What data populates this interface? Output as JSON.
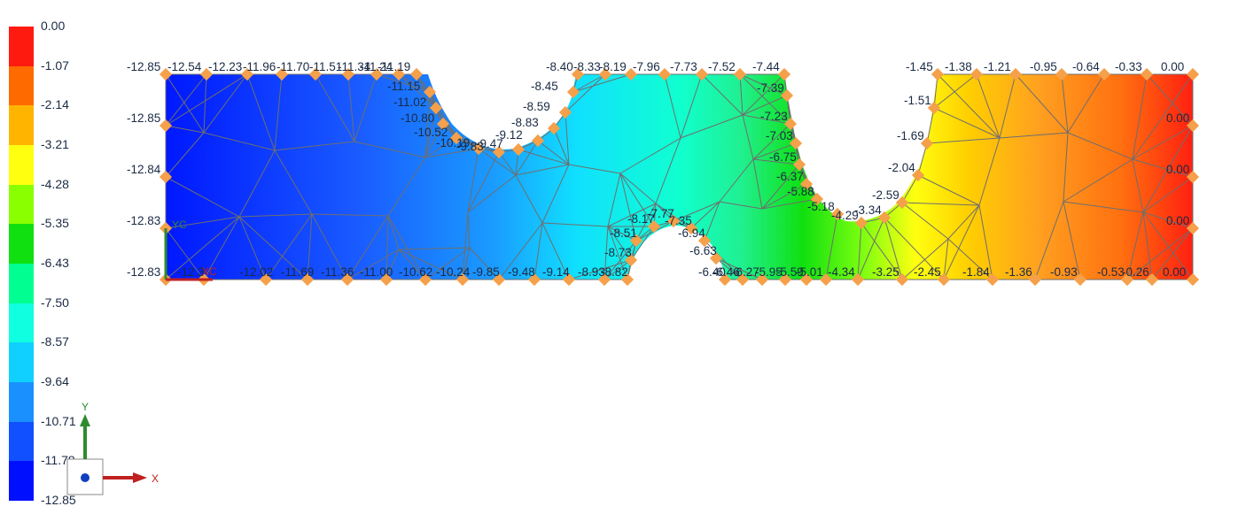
{
  "legend": {
    "colors": [
      "#ff1a10",
      "#ff6a00",
      "#ffb400",
      "#ffff10",
      "#8aff00",
      "#10e010",
      "#00ff90",
      "#10ffe0",
      "#10d0ff",
      "#1a90ff",
      "#1050ff",
      "#0010ff"
    ],
    "labels": [
      "0.00",
      "-1.07",
      "-2.14",
      "-3.21",
      "-4.28",
      "-5.35",
      "-6.43",
      "-7.50",
      "-8.57",
      "-9.64",
      "-10.71",
      "-11.78",
      "-12.85"
    ]
  },
  "view": {
    "x_axis_label": "X",
    "y_axis_label": "Y",
    "xc_label": "XC",
    "yc_label": "YC"
  },
  "node_labels": {
    "left_top": [
      "-12.85",
      "-12.54",
      "-12.23",
      "-11.96",
      "-11.70",
      "-11.51",
      "-11.34",
      "-11.24",
      "-11.19"
    ],
    "left_side": [
      "-12.85",
      "-12.84",
      "-12.83",
      "-12.83"
    ],
    "left_bottom": [
      "-12.3",
      "-12.02",
      "-11.69",
      "-11.36",
      "-11.00",
      "-10.62",
      "-10.24",
      "-9.85",
      "-9.48",
      "-9.14",
      "-8.93",
      "-8.82"
    ],
    "notch1": [
      "-11.15",
      "-11.02",
      "-10.80",
      "-10.52",
      "-10.19",
      "-9.83",
      "-9.47",
      "-9.12",
      "-8.83",
      "-8.59",
      "-8.45"
    ],
    "mid_top": [
      "-8.40",
      "-8.33",
      "-8.19",
      "-7.96",
      "-7.73",
      "-7.52",
      "-7.44"
    ],
    "notch_bottom": [
      "-8.73",
      "-8.51",
      "-8.17",
      "-7.77",
      "-7.35",
      "-6.94",
      "-6.63",
      "-6.40"
    ],
    "mid_bottom": [
      "-6.46",
      "-6.27",
      "-5.95",
      "-5.59",
      "-5.01",
      "-4.34",
      "-3.25"
    ],
    "notch2": [
      "-7.39",
      "-7.23",
      "-7.03",
      "-6.75",
      "-6.37",
      "-5.88",
      "-5.18",
      "-4.29",
      "-3.34",
      "-2.59",
      "-2.04",
      "-1.69",
      "-1.51"
    ],
    "right_top": [
      "-1.45",
      "-1.38",
      "-1.21",
      "-0.95",
      "-0.64",
      "-0.33",
      "0.00"
    ],
    "right_side": [
      "0.00",
      "0.00",
      "0.00"
    ],
    "right_bottom": [
      "-2.45",
      "-1.84",
      "-1.36",
      "-0.93",
      "-0.53",
      "-0.26",
      "0.00"
    ]
  }
}
